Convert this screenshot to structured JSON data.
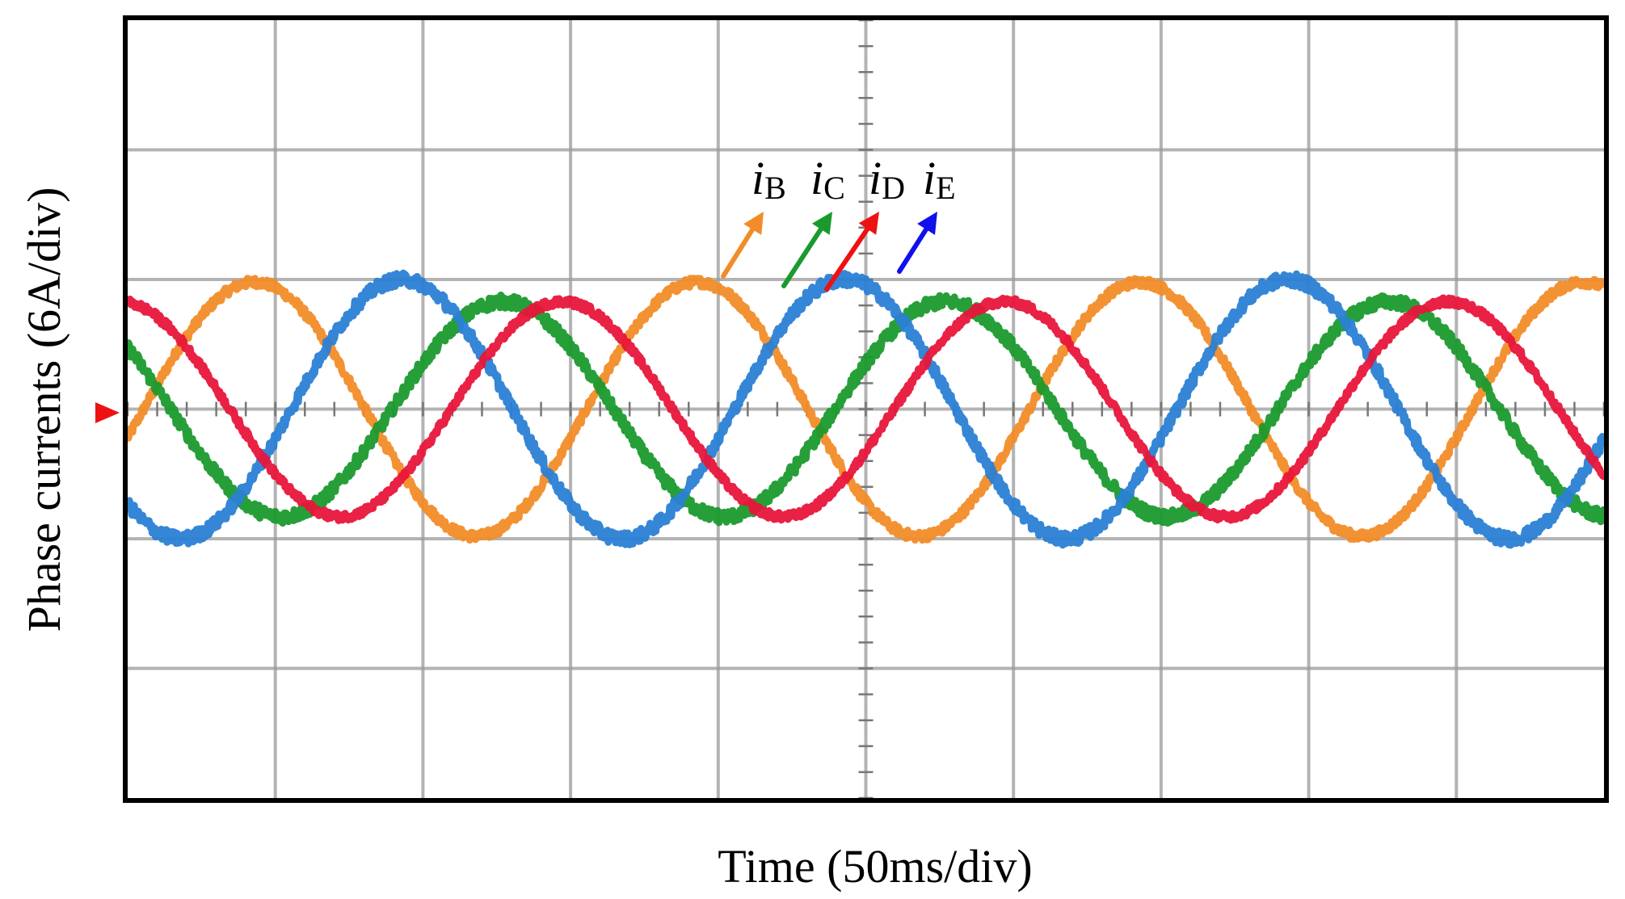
{
  "chart_data": {
    "type": "line",
    "xlabel": "Time (50ms/div)",
    "ylabel": "Phase currents (6A/div)",
    "x_unit": "div",
    "y_unit": "div",
    "xlim": [
      0,
      10
    ],
    "ylim": [
      -3,
      3
    ],
    "x_divisions": 10,
    "y_divisions": 6,
    "grid": true,
    "period_div": 3.0,
    "series": [
      {
        "name": "iB",
        "label_symbol": "i",
        "label_subscript": "B",
        "color": "#F28C28",
        "amplitude_div": 0.98,
        "phase_deg": -13,
        "noise_div": 0.035
      },
      {
        "name": "iC",
        "label_symbol": "i",
        "label_subscript": "C",
        "color": "#1A9A2E",
        "amplitude_div": 0.83,
        "phase_deg": 145,
        "noise_div": 0.05
      },
      {
        "name": "iD",
        "label_symbol": "i",
        "label_subscript": "D",
        "color": "#E8153A",
        "amplitude_div": 0.83,
        "phase_deg": 97,
        "noise_div": 0.03
      },
      {
        "name": "iE",
        "label_symbol": "i",
        "label_subscript": "E",
        "color": "#2A7FD4",
        "amplitude_div": 1.0,
        "phase_deg": -133,
        "noise_div": 0.05
      }
    ],
    "arrow_colors": [
      "#F28C28",
      "#1A9A2E",
      "#EE1111",
      "#1010EE"
    ],
    "ground_marker_color": "#EE1111"
  }
}
